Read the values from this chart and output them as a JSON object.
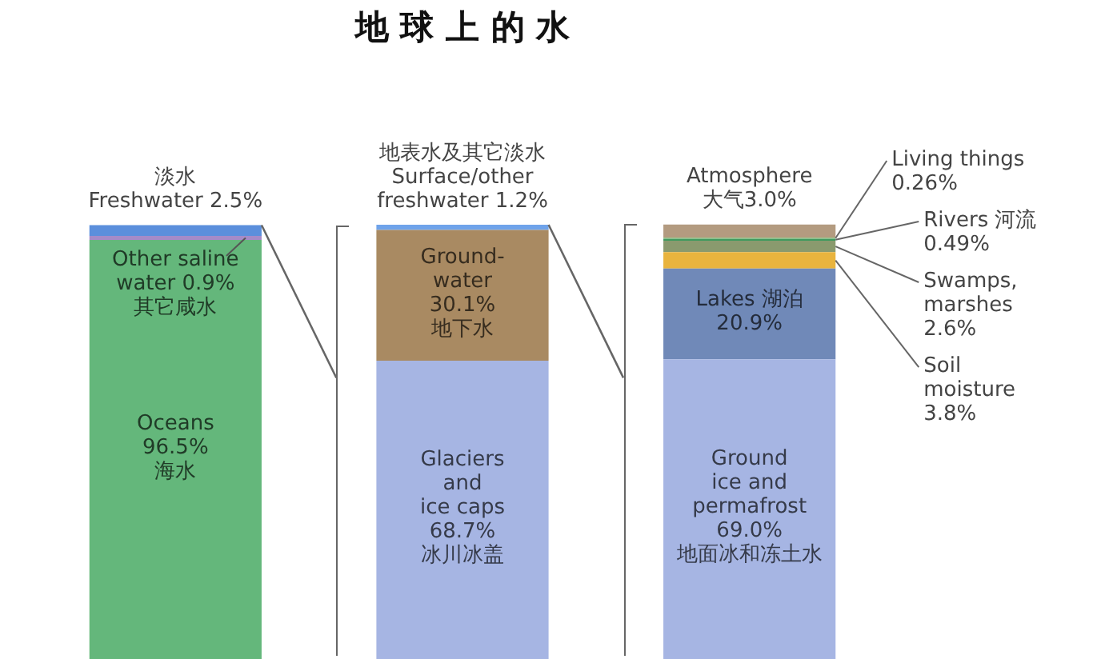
{
  "chart_data": {
    "type": "bar",
    "title": "地 球 上 的 水",
    "stacked": true,
    "categories": [
      null,
      null,
      null
    ],
    "legend": false,
    "tick_labels": false,
    "series": [
      {
        "color": "#64b77b",
        "values": [
          96.5,
          null,
          null
        ],
        "value_labels": [
          "Oceans\n96.5%\n海水",
          null,
          null
        ]
      },
      {
        "color": "#a48bc8",
        "values": [
          0.9,
          null,
          null
        ],
        "value_labels": [
          "Other saline\nwater 0.9%\n其它咸水",
          null,
          null
        ]
      },
      {
        "color": "#5b8fdc",
        "values": [
          2.5,
          null,
          null
        ],
        "value_labels": [
          "淡水\nFreshwater 2.5%",
          null,
          null
        ]
      },
      {
        "color": "#a6b5e3",
        "values": [
          null,
          68.7,
          69.0
        ],
        "value_labels": [
          null,
          "Glaciers\nand\nice caps\n68.7%\n冰川冰盖",
          "Ground\nice and\npermafrost\n69.0%\n地面冰和冻土水"
        ]
      },
      {
        "color": "#a98a62",
        "values": [
          null,
          30.1,
          null
        ],
        "value_labels": [
          null,
          "Ground-\nwater\n30.1%\n地下水",
          null
        ]
      },
      {
        "color": "#6fa3ea",
        "values": [
          null,
          1.2,
          null
        ],
        "value_labels": [
          null,
          "地表水及其它淡水\nSurface/other\nfreshwater 1.2%",
          null
        ]
      },
      {
        "color": "#7089b8",
        "values": [
          null,
          null,
          20.9
        ],
        "value_labels": [
          null,
          null,
          "Lakes 湖泊\n20.9%"
        ]
      },
      {
        "color": "#e9b43e",
        "values": [
          null,
          null,
          3.8
        ],
        "value_labels": [
          null,
          null,
          "Soil\nmoisture\n3.8%"
        ]
      },
      {
        "color": "#8a9a6e",
        "values": [
          null,
          null,
          2.6
        ],
        "value_labels": [
          null,
          null,
          "Swamps,\nmarshes\n2.6%"
        ]
      },
      {
        "color": "#3f9a5e",
        "values": [
          null,
          null,
          0.49
        ],
        "value_labels": [
          null,
          null,
          "Rivers 河流\n0.49%"
        ]
      },
      {
        "color": "#9fc48a",
        "values": [
          null,
          null,
          0.26
        ],
        "value_labels": [
          null,
          null,
          "Living things\n0.26%"
        ]
      },
      {
        "color": "#b39b80",
        "values": [
          null,
          null,
          3.0
        ],
        "value_labels": [
          null,
          null,
          "Atmosphere\n大气3.0%"
        ]
      }
    ]
  }
}
